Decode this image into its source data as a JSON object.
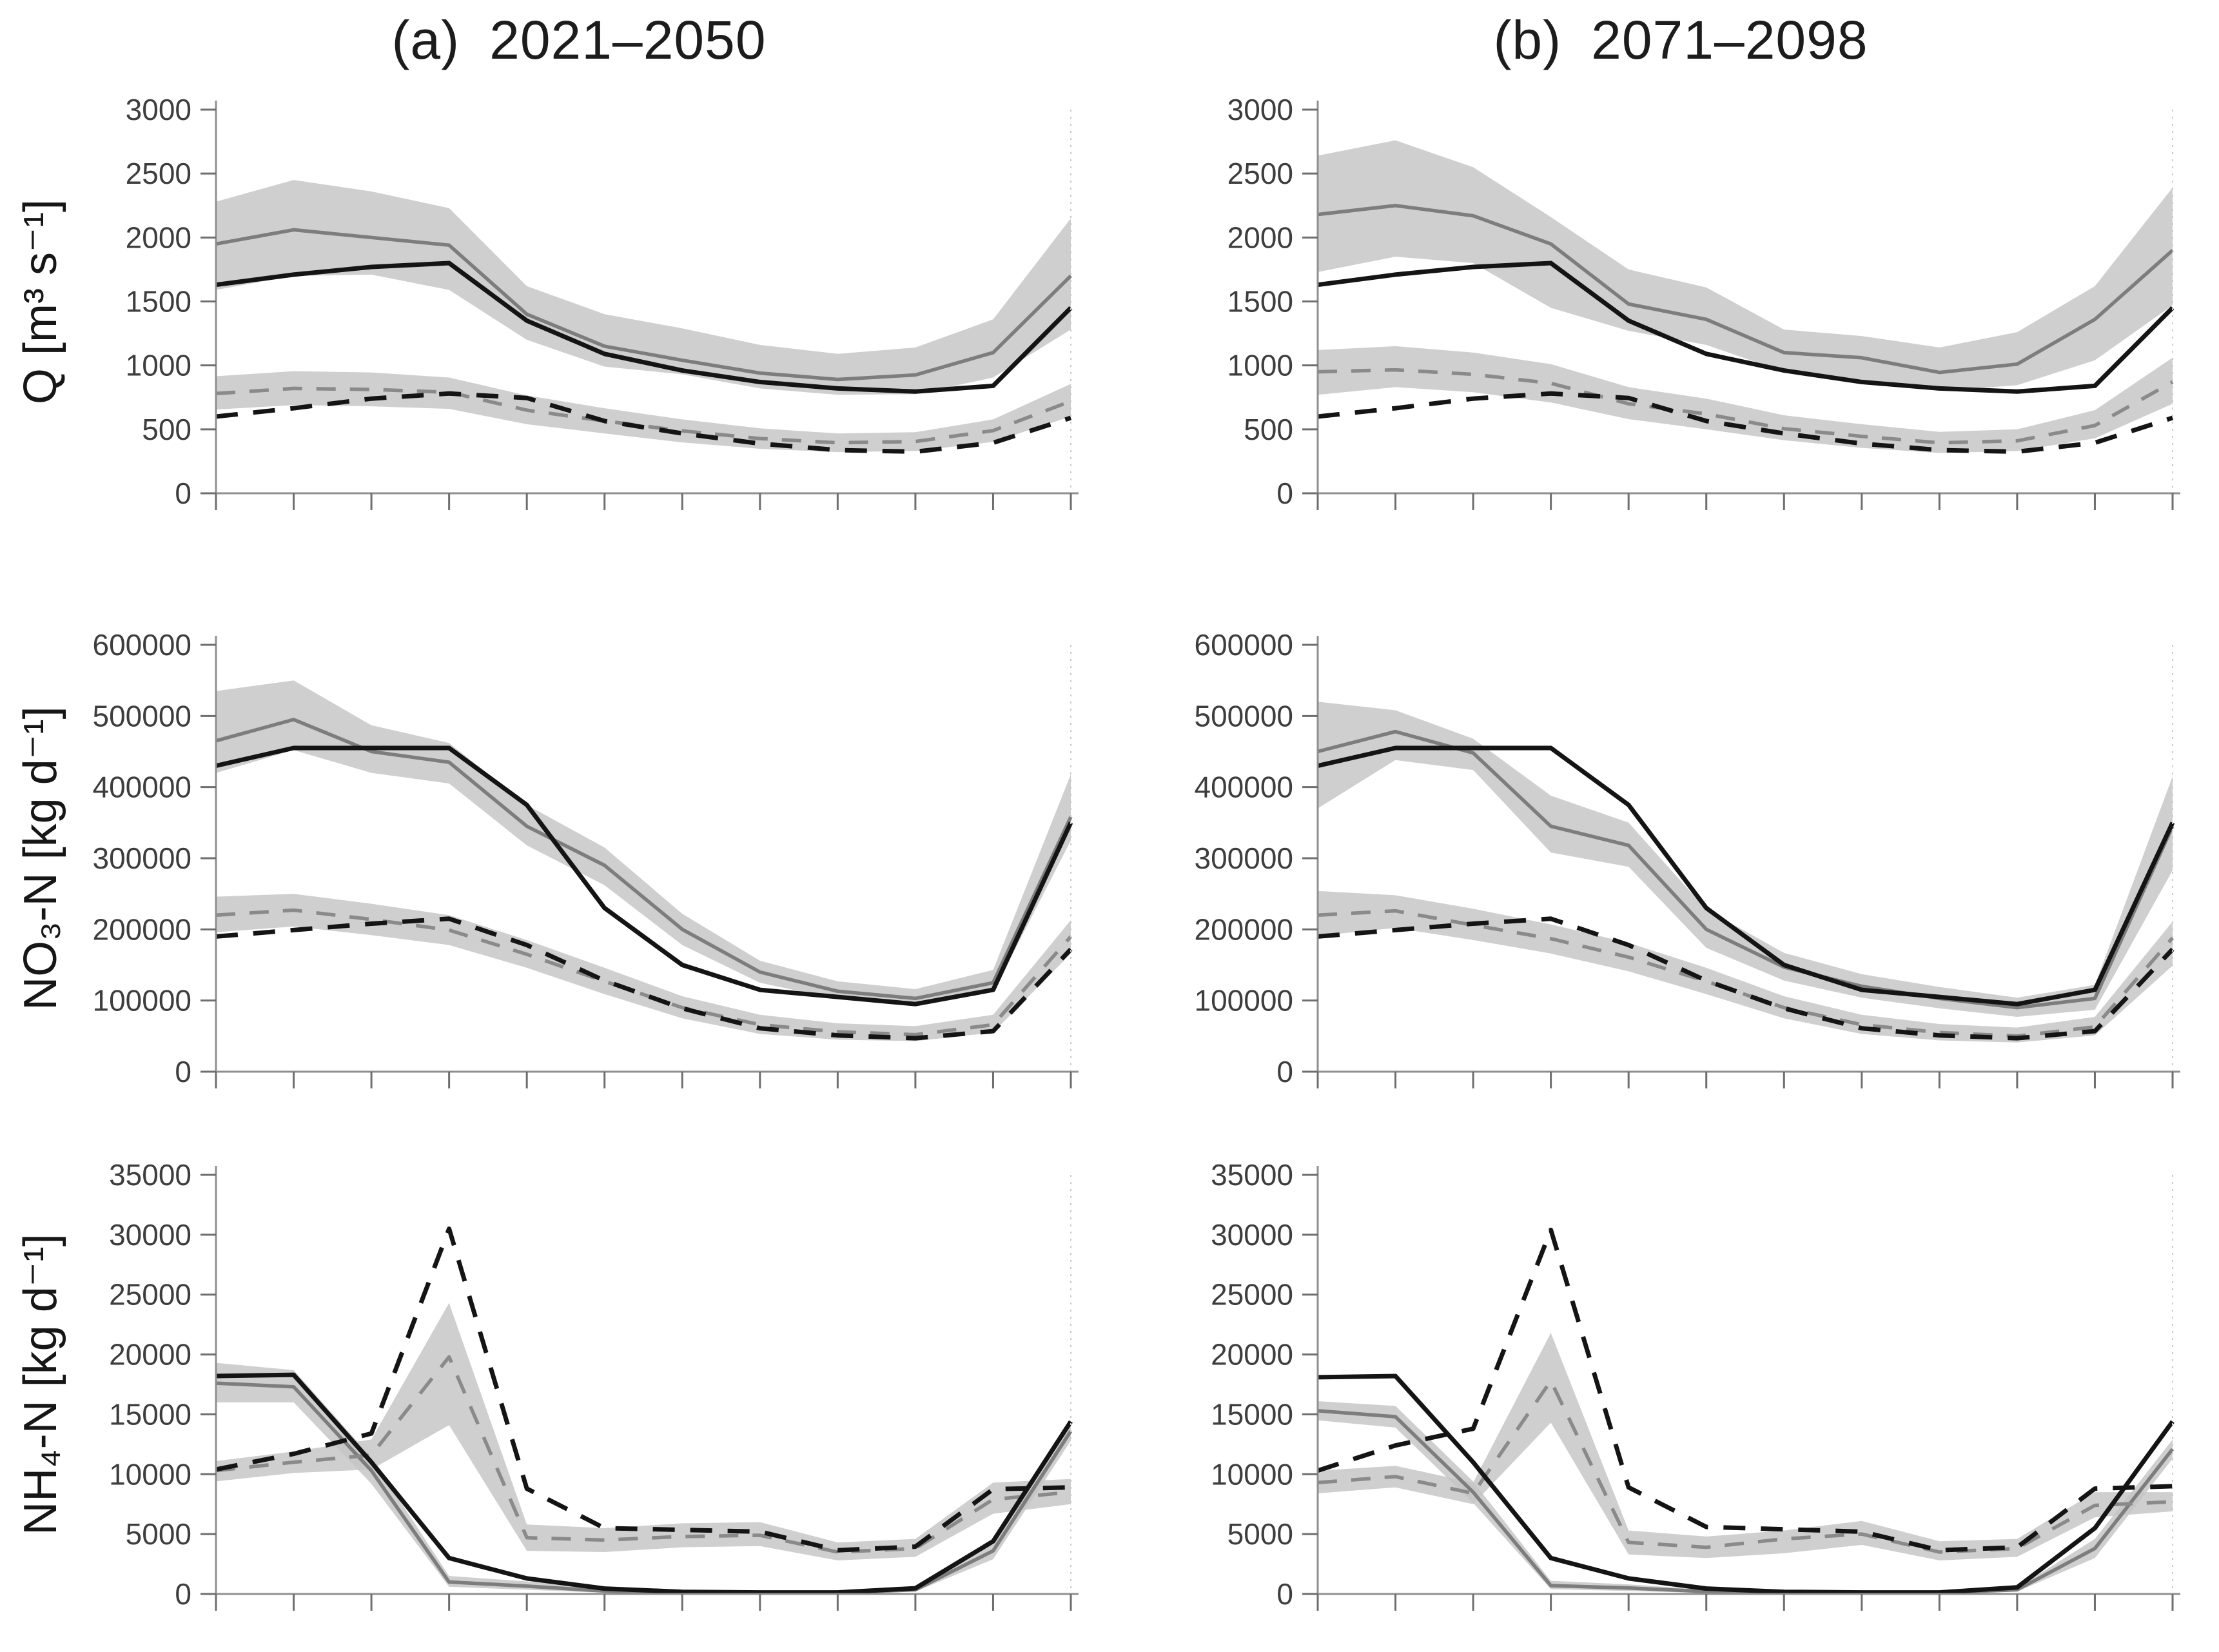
{
  "figure": {
    "panel_titles": [
      {
        "prefix": "(a)",
        "range": "2021–2050"
      },
      {
        "prefix": "(b)",
        "range": "2071–2098"
      }
    ],
    "row_labels": [
      "Q [m³ s⁻¹]",
      "NO₃-N [kg d⁻¹]",
      "NH₄-N [kg d⁻¹]"
    ],
    "colors": {
      "black_line": "#141414",
      "gray_line": "#7d7d7d",
      "gray_dash_line": "#8a8a8a",
      "band_fill": "#c5c5c5",
      "axis": "#8f8f8f",
      "tick": "#6e6e6e",
      "tick_text": "#3d3d3d"
    }
  },
  "chart_data": [
    {
      "id": "q-2021-2050",
      "row": 0,
      "col": 0,
      "type": "line",
      "panel": "(a) 2021–2050",
      "ylabel": "Q [m³ s⁻¹]",
      "ylim": [
        0,
        3000
      ],
      "yticks": [
        0,
        500,
        1000,
        1500,
        2000,
        2500,
        3000
      ],
      "x_ticks": 12,
      "x_tick_labels_visible": false,
      "grid": false,
      "legend": false,
      "series": [
        {
          "name": "gray-solid",
          "line": "solid",
          "color": "gray",
          "values": [
            1950,
            2060,
            2000,
            1940,
            1400,
            1150,
            1040,
            940,
            890,
            925,
            1100,
            1700
          ],
          "band": {
            "upper": [
              2280,
              2450,
              2360,
              2230,
              1620,
              1400,
              1290,
              1160,
              1090,
              1140,
              1360,
              2150
            ],
            "lower": [
              1590,
              1700,
              1710,
              1590,
              1200,
              990,
              930,
              820,
              770,
              775,
              905,
              1280
            ]
          }
        },
        {
          "name": "gray-dashed",
          "line": "dashed",
          "color": "gray",
          "values": [
            780,
            820,
            812,
            790,
            650,
            565,
            488,
            428,
            395,
            405,
            490,
            720
          ],
          "band": {
            "upper": [
              915,
              955,
              945,
              905,
              765,
              665,
              578,
              508,
              468,
              478,
              578,
              855
            ],
            "lower": [
              655,
              690,
              680,
              660,
              540,
              468,
              398,
              348,
              322,
              330,
              402,
              600
            ]
          }
        },
        {
          "name": "black-solid",
          "line": "solid",
          "color": "black",
          "values": [
            1630,
            1710,
            1770,
            1800,
            1350,
            1090,
            960,
            870,
            820,
            795,
            840,
            1450
          ]
        },
        {
          "name": "black-dashed",
          "line": "dashed",
          "color": "black",
          "values": [
            600,
            665,
            740,
            780,
            745,
            565,
            468,
            388,
            338,
            325,
            395,
            590
          ]
        }
      ]
    },
    {
      "id": "q-2071-2098",
      "row": 0,
      "col": 1,
      "type": "line",
      "panel": "(b) 2071–2098",
      "ylabel": "Q [m³ s⁻¹]",
      "ylim": [
        0,
        3000
      ],
      "yticks": [
        0,
        500,
        1000,
        1500,
        2000,
        2500,
        3000
      ],
      "x_ticks": 12,
      "x_tick_labels_visible": false,
      "grid": false,
      "legend": false,
      "series": [
        {
          "name": "gray-solid",
          "line": "solid",
          "color": "gray",
          "values": [
            2180,
            2250,
            2170,
            1950,
            1480,
            1360,
            1100,
            1060,
            945,
            1010,
            1360,
            1900
          ],
          "band": {
            "upper": [
              2640,
              2760,
              2550,
              2160,
              1750,
              1610,
              1280,
              1230,
              1140,
              1260,
              1620,
              2390
            ],
            "lower": [
              1730,
              1850,
              1800,
              1450,
              1270,
              1160,
              950,
              870,
              800,
              845,
              1040,
              1470
            ]
          }
        },
        {
          "name": "gray-dashed",
          "line": "dashed",
          "color": "gray",
          "values": [
            950,
            965,
            930,
            860,
            700,
            620,
            505,
            445,
            395,
            410,
            530,
            870
          ],
          "band": {
            "upper": [
              1120,
              1150,
              1100,
              1010,
              830,
              740,
              610,
              540,
              480,
              500,
              650,
              1060
            ],
            "lower": [
              770,
              830,
              790,
              710,
              580,
              500,
              415,
              355,
              315,
              330,
              430,
              700
            ]
          }
        },
        {
          "name": "black-solid",
          "line": "solid",
          "color": "black",
          "values": [
            1630,
            1710,
            1770,
            1800,
            1350,
            1090,
            960,
            870,
            820,
            795,
            840,
            1450
          ]
        },
        {
          "name": "black-dashed",
          "line": "dashed",
          "color": "black",
          "values": [
            600,
            665,
            740,
            780,
            745,
            565,
            468,
            388,
            338,
            325,
            395,
            590
          ]
        }
      ]
    },
    {
      "id": "no3n-2021-2050",
      "row": 1,
      "col": 0,
      "type": "line",
      "panel": "(a) 2021–2050",
      "ylabel": "NO₃-N [kg d⁻¹]",
      "ylim": [
        0,
        600000
      ],
      "yticks": [
        0,
        100000,
        200000,
        300000,
        400000,
        500000,
        600000
      ],
      "x_ticks": 12,
      "x_tick_labels_visible": false,
      "grid": false,
      "legend": false,
      "series": [
        {
          "name": "gray-solid",
          "line": "solid",
          "color": "gray",
          "values": [
            465000,
            495000,
            450000,
            435000,
            345000,
            290000,
            200000,
            140000,
            113000,
            103000,
            125000,
            358000
          ],
          "band": {
            "upper": [
              535000,
              550000,
              487000,
              462000,
              375000,
              315000,
              222000,
              156000,
              127000,
              116000,
              143000,
              418000
            ],
            "lower": [
              420000,
              452000,
              420000,
              405000,
              318000,
              262000,
              178000,
              125000,
              102000,
              92000,
              112000,
              325000
            ]
          }
        },
        {
          "name": "gray-dashed",
          "line": "dashed",
          "color": "gray",
          "values": [
            220000,
            227000,
            214000,
            199000,
            165000,
            127000,
            90000,
            66000,
            56000,
            52000,
            66000,
            190000
          ],
          "band": {
            "upper": [
              246000,
              250000,
              236000,
              220000,
              185000,
              146000,
              106000,
              80000,
              68000,
              64000,
              80000,
              213000
            ],
            "lower": [
              196000,
              204000,
              192000,
              178000,
              146000,
              109000,
              75000,
              53000,
              45000,
              43000,
              55000,
              166000
            ]
          }
        },
        {
          "name": "black-solid",
          "line": "solid",
          "color": "black",
          "values": [
            430000,
            455000,
            455000,
            455000,
            375000,
            230000,
            150000,
            115000,
            105000,
            95000,
            115000,
            350000
          ]
        },
        {
          "name": "black-dashed",
          "line": "dashed",
          "color": "black",
          "values": [
            190000,
            199000,
            208000,
            215000,
            178000,
            128000,
            89000,
            61000,
            51000,
            47000,
            57000,
            172000
          ]
        }
      ]
    },
    {
      "id": "no3n-2071-2098",
      "row": 1,
      "col": 1,
      "type": "line",
      "panel": "(b) 2071–2098",
      "ylabel": "NO₃-N [kg d⁻¹]",
      "ylim": [
        0,
        600000
      ],
      "yticks": [
        0,
        100000,
        200000,
        300000,
        400000,
        500000,
        600000
      ],
      "x_ticks": 12,
      "x_tick_labels_visible": false,
      "grid": false,
      "legend": false,
      "series": [
        {
          "name": "gray-solid",
          "line": "solid",
          "color": "gray",
          "values": [
            450000,
            478000,
            448000,
            345000,
            318000,
            200000,
            147000,
            120000,
            103000,
            90000,
            103000,
            345000
          ],
          "band": {
            "upper": [
              520000,
              508000,
              468000,
              388000,
              350000,
              228000,
              167000,
              137000,
              119000,
              104000,
              122000,
              415000
            ],
            "lower": [
              370000,
              438000,
              424000,
              308000,
              288000,
              174000,
              128000,
              104000,
              89000,
              77000,
              87000,
              283000
            ]
          }
        },
        {
          "name": "gray-dashed",
          "line": "dashed",
          "color": "gray",
          "values": [
            220000,
            226000,
            206000,
            187000,
            161000,
            127000,
            90000,
            66000,
            55000,
            50000,
            63000,
            188000
          ],
          "band": {
            "upper": [
              254000,
              248000,
              229000,
              207000,
              181000,
              146000,
              106000,
              80000,
              67000,
              62000,
              77000,
              211000
            ],
            "lower": [
              191000,
              202000,
              185000,
              166000,
              141000,
              109000,
              75000,
              53000,
              44000,
              41000,
              51000,
              149000
            ]
          }
        },
        {
          "name": "black-solid",
          "line": "solid",
          "color": "black",
          "values": [
            430000,
            455000,
            455000,
            455000,
            375000,
            230000,
            150000,
            115000,
            105000,
            95000,
            115000,
            350000
          ]
        },
        {
          "name": "black-dashed",
          "line": "dashed",
          "color": "black",
          "values": [
            190000,
            199000,
            208000,
            215000,
            178000,
            128000,
            89000,
            61000,
            51000,
            47000,
            57000,
            172000
          ]
        }
      ]
    },
    {
      "id": "nh4n-2021-2050",
      "row": 2,
      "col": 0,
      "type": "line",
      "panel": "(a) 2021–2050",
      "ylabel": "NH₄-N [kg d⁻¹]",
      "ylim": [
        0,
        35000
      ],
      "yticks": [
        0,
        5000,
        10000,
        15000,
        20000,
        25000,
        30000,
        35000
      ],
      "x_ticks": 12,
      "x_tick_labels_visible": false,
      "grid": false,
      "legend": false,
      "series": [
        {
          "name": "gray-solid",
          "line": "solid",
          "color": "gray",
          "values": [
            17600,
            17300,
            10300,
            1000,
            650,
            250,
            120,
            100,
            100,
            350,
            3600,
            13600
          ],
          "band": {
            "upper": [
              19300,
              18700,
              11400,
              1500,
              1050,
              450,
              250,
              200,
              200,
              500,
              4400,
              14400
            ],
            "lower": [
              16000,
              16000,
              9200,
              600,
              350,
              100,
              50,
              50,
              50,
              200,
              2900,
              12800
            ]
          }
        },
        {
          "name": "gray-dashed",
          "line": "dashed",
          "color": "gray",
          "values": [
            10300,
            11000,
            11600,
            19800,
            4700,
            4500,
            4800,
            4900,
            3500,
            3800,
            7900,
            8500
          ],
          "band": {
            "upper": [
              11100,
              11900,
              12900,
              24300,
              5800,
              5500,
              5900,
              6000,
              4300,
              4600,
              9300,
              9600
            ],
            "lower": [
              9400,
              10100,
              10400,
              14100,
              3600,
              3500,
              3900,
              4000,
              2800,
              3100,
              6700,
              7500
            ]
          }
        },
        {
          "name": "black-solid",
          "line": "solid",
          "color": "black",
          "values": [
            18200,
            18300,
            11000,
            3000,
            1300,
            450,
            180,
            130,
            130,
            480,
            4400,
            14400
          ]
        },
        {
          "name": "black-dashed",
          "line": "dashed",
          "color": "black",
          "values": [
            10400,
            11700,
            13400,
            30500,
            8800,
            5500,
            5350,
            5200,
            3650,
            3950,
            8750,
            8900
          ]
        }
      ]
    },
    {
      "id": "nh4n-2071-2098",
      "row": 2,
      "col": 1,
      "type": "line",
      "panel": "(b) 2071–2098",
      "ylabel": "NH₄-N [kg d⁻¹]",
      "ylim": [
        0,
        35000
      ],
      "yticks": [
        0,
        5000,
        10000,
        15000,
        20000,
        25000,
        30000,
        35000
      ],
      "x_ticks": 12,
      "x_tick_labels_visible": false,
      "grid": false,
      "legend": false,
      "series": [
        {
          "name": "gray-solid",
          "line": "solid",
          "color": "gray",
          "values": [
            15300,
            14800,
            8500,
            700,
            500,
            200,
            100,
            100,
            100,
            350,
            3800,
            12100
          ],
          "band": {
            "upper": [
              16100,
              15700,
              9400,
              1100,
              800,
              350,
              200,
              180,
              180,
              500,
              4600,
              12900
            ],
            "lower": [
              14500,
              13900,
              7600,
              400,
              250,
              80,
              50,
              50,
              50,
              200,
              3000,
              11300
            ]
          }
        },
        {
          "name": "gray-dashed",
          "line": "dashed",
          "color": "gray",
          "values": [
            9300,
            9800,
            8400,
            17800,
            4300,
            3900,
            4600,
            5000,
            3500,
            3800,
            7400,
            7700
          ],
          "band": {
            "upper": [
              10300,
              10700,
              9300,
              21800,
              5300,
              4800,
              5300,
              6100,
              4400,
              4600,
              8500,
              8500
            ],
            "lower": [
              8400,
              8900,
              7500,
              14300,
              3300,
              3000,
              3400,
              4100,
              2800,
              3100,
              6400,
              6900
            ]
          }
        },
        {
          "name": "black-solid",
          "line": "solid",
          "color": "black",
          "values": [
            18100,
            18200,
            11000,
            3000,
            1300,
            450,
            180,
            130,
            130,
            550,
            5500,
            14400
          ]
        },
        {
          "name": "black-dashed",
          "line": "dashed",
          "color": "black",
          "values": [
            10300,
            12400,
            13800,
            30400,
            8900,
            5600,
            5400,
            5200,
            3650,
            3900,
            8800,
            9000
          ]
        }
      ]
    }
  ]
}
